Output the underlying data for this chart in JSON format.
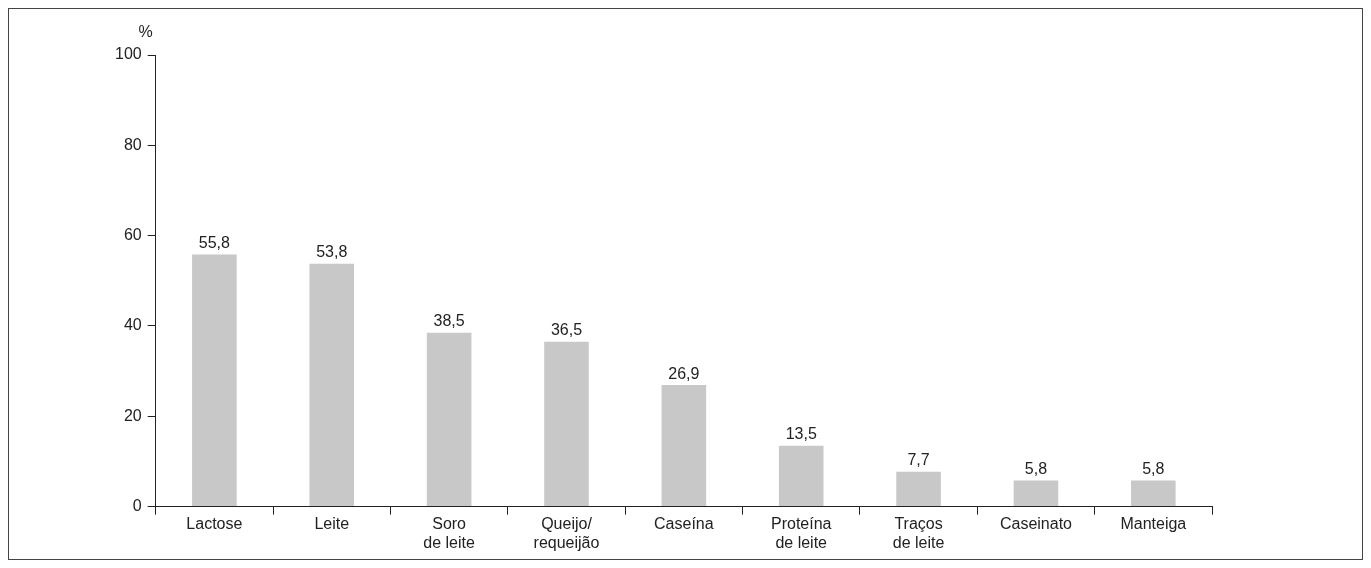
{
  "chart_data": {
    "type": "bar",
    "ylabel": "%",
    "categories": [
      "Lactose",
      "Leite",
      "Soro de leite",
      "Queijo/requeijão",
      "Caseína",
      "Proteína de leite",
      "Traços de leite",
      "Caseinato",
      "Manteiga"
    ],
    "values": [
      55.8,
      53.8,
      38.5,
      36.5,
      26.9,
      13.5,
      7.7,
      5.8,
      5.8
    ],
    "value_labels": [
      "55,8",
      "53,8",
      "38,5",
      "36,5",
      "26,9",
      "13,5",
      "7,7",
      "5,8",
      "5,8"
    ],
    "color": "#c8c8c8",
    "ylim": [
      0,
      100
    ],
    "yticks": [
      0,
      20,
      40,
      60,
      80,
      100
    ],
    "grid": false,
    "legend": false
  }
}
